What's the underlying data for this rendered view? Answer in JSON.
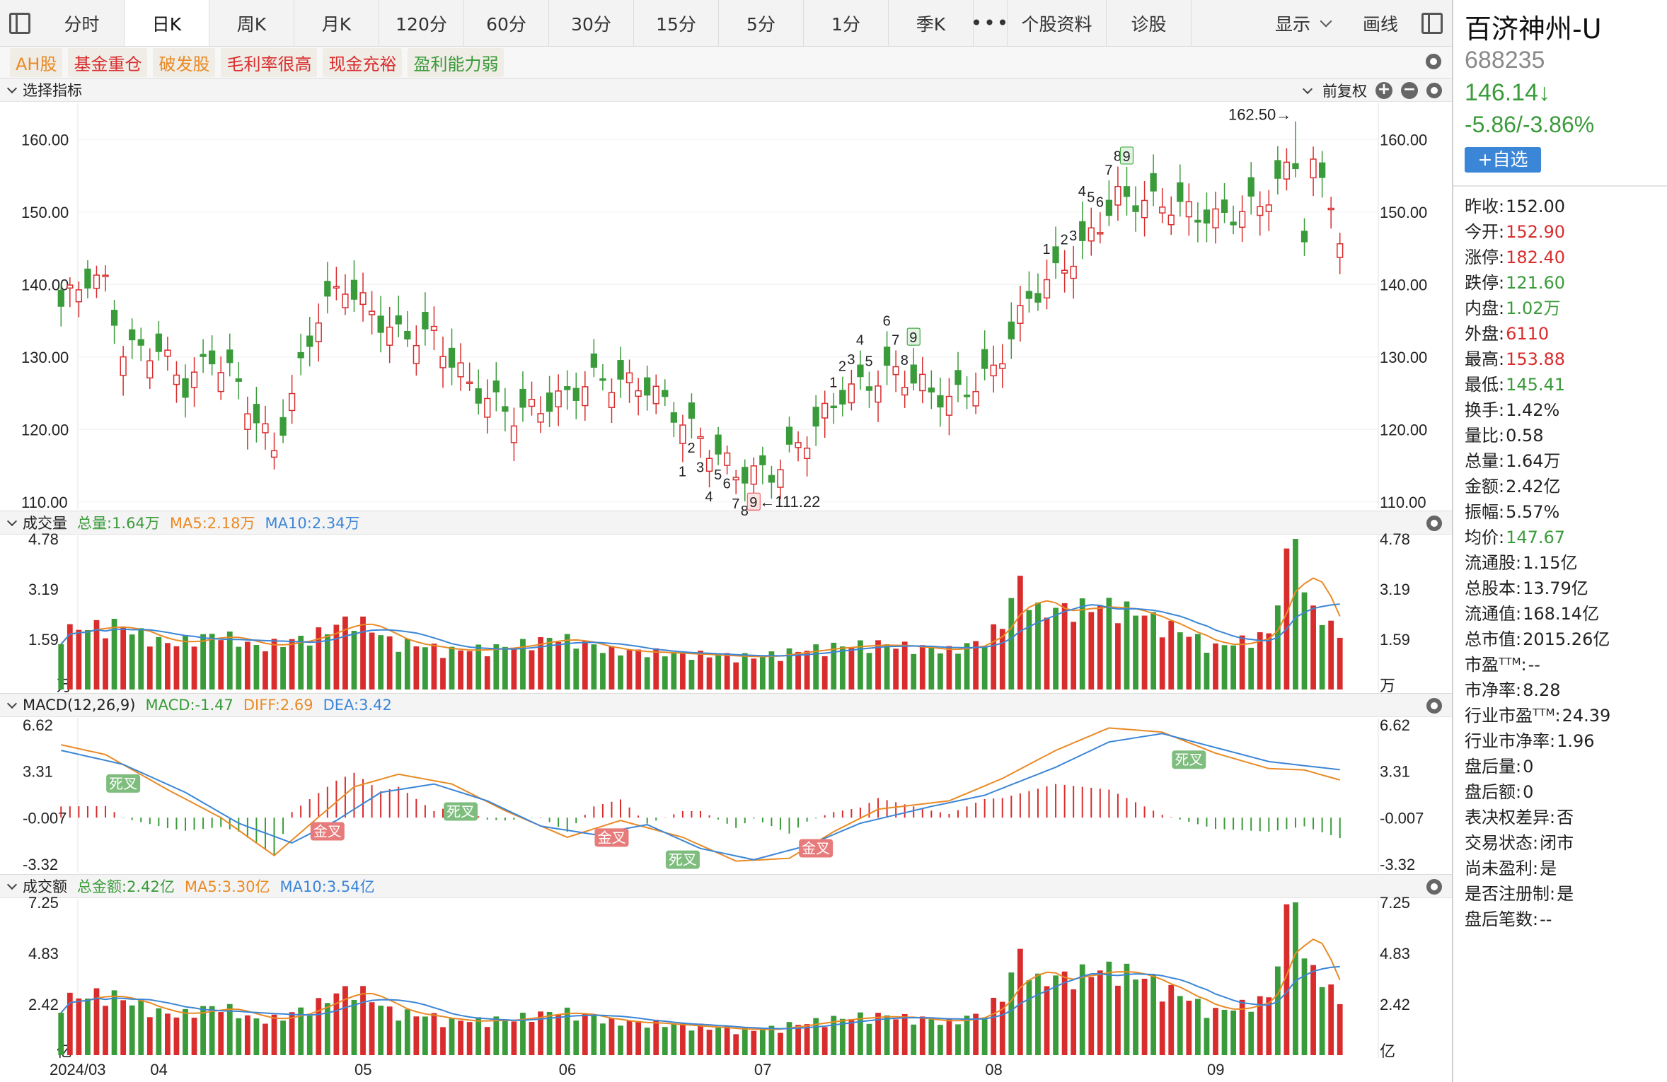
{
  "toolbar": {
    "tabs": [
      "分时",
      "日K",
      "周K",
      "月K",
      "120分",
      "60分",
      "30分",
      "15分",
      "5分",
      "1分",
      "季K"
    ],
    "more": "•••",
    "extra": [
      "个股资料",
      "诊股"
    ],
    "display_label": "显示",
    "draw_label": "画线"
  },
  "tags": [
    {
      "label": "AH股",
      "color": "#e98a25"
    },
    {
      "label": "基金重仓",
      "color": "#d92d2d"
    },
    {
      "label": "破发股",
      "color": "#e98a25"
    },
    {
      "label": "毛利率很高",
      "color": "#d92d2d"
    },
    {
      "label": "现金充裕",
      "color": "#d92d2d"
    },
    {
      "label": "盈利能力弱",
      "color": "#3a9b3a"
    }
  ],
  "price_panel": {
    "title": "选择指标",
    "adjust": "前复权",
    "high_label": "162.50→",
    "low_label": "←111.22",
    "y_ticks": [
      "160.00",
      "150.00",
      "140.00",
      "130.00",
      "120.00",
      "110.00"
    ]
  },
  "volume_panel": {
    "title": "成交量",
    "total": "总量:1.64万",
    "ma5": "MA5:2.18万",
    "ma10": "MA10:2.34万",
    "y_ticks": [
      "4.78",
      "3.19",
      "1.59",
      "万"
    ]
  },
  "macd_panel": {
    "title": "MACD(12,26,9)",
    "macd": "MACD:-1.47",
    "diff": "DIFF:2.69",
    "dea": "DEA:3.42",
    "y_ticks": [
      "6.62",
      "3.31",
      "-0.007",
      "-3.32"
    ],
    "death_cross": "死叉",
    "golden_cross": "金叉"
  },
  "amount_panel": {
    "title": "成交额",
    "total": "总金额:2.42亿",
    "ma5": "MA5:3.30亿",
    "ma10": "MA10:3.54亿",
    "y_ticks": [
      "7.25",
      "4.83",
      "2.42",
      "亿"
    ]
  },
  "x_axis_labels": [
    "2024/03",
    "04",
    "05",
    "06",
    "07",
    "08",
    "09"
  ],
  "stock": {
    "name": "百济神州-U",
    "code": "688235",
    "price": "146.14↓",
    "change": "-5.86/-3.86%",
    "watch_label": "+自选"
  },
  "quotes": [
    {
      "label": "昨收:",
      "value": "152.00",
      "color": "#222222"
    },
    {
      "label": "今开:",
      "value": "152.90",
      "color": "#d92d2d"
    },
    {
      "label": "涨停:",
      "value": "182.40",
      "color": "#d92d2d"
    },
    {
      "label": "跌停:",
      "value": "121.60",
      "color": "#3a9b3a"
    },
    {
      "label": "内盘:",
      "value": "1.02万",
      "color": "#3a9b3a"
    },
    {
      "label": "外盘:",
      "value": "6110",
      "color": "#d92d2d"
    },
    {
      "label": "最高:",
      "value": "153.88",
      "color": "#d92d2d"
    },
    {
      "label": "最低:",
      "value": "145.41",
      "color": "#3a9b3a"
    },
    {
      "label": "换手:",
      "value": "1.42%",
      "color": "#222222"
    },
    {
      "label": "量比:",
      "value": "0.58",
      "color": "#222222"
    },
    {
      "label": "总量:",
      "value": "1.64万",
      "color": "#222222"
    },
    {
      "label": "金额:",
      "value": "2.42亿",
      "color": "#222222"
    },
    {
      "label": "振幅:",
      "value": "5.57%",
      "color": "#222222"
    },
    {
      "label": "均价:",
      "value": "147.67",
      "color": "#3a9b3a"
    },
    {
      "label": "流通股:",
      "value": "1.15亿",
      "color": "#222222"
    },
    {
      "label": "总股本:",
      "value": "13.79亿",
      "color": "#222222"
    },
    {
      "label": "流通值:",
      "value": "168.14亿",
      "color": "#222222"
    },
    {
      "label": "总市值:",
      "value": "2015.26亿",
      "color": "#222222"
    },
    {
      "label": "市盈ᵀᵀᴹ:",
      "value": "--",
      "color": "#222222"
    },
    {
      "label": "市净率:",
      "value": "8.28",
      "color": "#222222"
    },
    {
      "label": "行业市盈ᵀᵀᴹ:",
      "value": "24.39",
      "color": "#222222"
    },
    {
      "label": "行业市净率:",
      "value": "1.96",
      "color": "#222222"
    },
    {
      "label": "盘后量:",
      "value": "0",
      "color": "#222222"
    },
    {
      "label": "盘后额:",
      "value": "0",
      "color": "#222222"
    },
    {
      "label": "表决权差异:",
      "value": "否",
      "color": "#222222"
    },
    {
      "label": "交易状态:",
      "value": "闭市",
      "color": "#222222"
    },
    {
      "label": "尚未盈利:",
      "value": "是",
      "color": "#222222"
    },
    {
      "label": "是否注册制:",
      "value": "是",
      "color": "#222222"
    },
    {
      "label": "盘后笔数:",
      "value": "--",
      "color": "#222222"
    }
  ],
  "colors": {
    "up": "#d92d2d",
    "down": "#3a9b3a",
    "ma5": "#e98a25",
    "ma10": "#3b86d6"
  },
  "chart_data": {
    "type": "candlestick",
    "close_knots": [
      [
        0,
        137
      ],
      [
        3,
        141
      ],
      [
        5,
        140
      ],
      [
        7,
        131
      ],
      [
        11,
        131
      ],
      [
        14,
        126
      ],
      [
        17,
        130
      ],
      [
        19,
        128
      ],
      [
        24,
        117
      ],
      [
        29,
        136
      ],
      [
        32,
        140
      ],
      [
        35,
        136
      ],
      [
        38,
        133
      ],
      [
        42,
        133
      ],
      [
        46,
        126
      ],
      [
        51,
        122
      ],
      [
        56,
        124
      ],
      [
        60,
        127
      ],
      [
        66,
        126
      ],
      [
        71,
        120
      ],
      [
        76,
        114
      ],
      [
        80,
        114
      ],
      [
        84,
        119
      ],
      [
        88,
        125
      ],
      [
        94,
        128
      ],
      [
        100,
        124
      ],
      [
        105,
        128
      ],
      [
        109,
        138
      ],
      [
        115,
        145
      ],
      [
        119,
        152
      ],
      [
        125,
        151
      ],
      [
        130,
        149
      ],
      [
        135,
        151
      ],
      [
        139,
        157
      ],
      [
        140,
        147
      ],
      [
        141,
        156
      ],
      [
        143,
        152
      ],
      [
        144,
        146
      ]
    ],
    "volume_knots": [
      [
        0,
        1.8
      ],
      [
        6,
        2.0
      ],
      [
        12,
        1.4
      ],
      [
        18,
        1.7
      ],
      [
        22,
        1.3
      ],
      [
        28,
        1.6
      ],
      [
        33,
        2.2
      ],
      [
        37,
        1.5
      ],
      [
        44,
        1.2
      ],
      [
        50,
        1.3
      ],
      [
        56,
        1.6
      ],
      [
        62,
        1.2
      ],
      [
        70,
        1.1
      ],
      [
        78,
        1.0
      ],
      [
        86,
        1.3
      ],
      [
        92,
        1.4
      ],
      [
        100,
        1.2
      ],
      [
        104,
        1.5
      ],
      [
        106,
        2.1
      ],
      [
        108,
        3.3
      ],
      [
        110,
        2.4
      ],
      [
        118,
        2.6
      ],
      [
        122,
        2.3
      ],
      [
        130,
        1.3
      ],
      [
        136,
        1.7
      ],
      [
        138,
        3.9
      ],
      [
        139,
        4.78
      ],
      [
        140,
        2.8
      ],
      [
        143,
        1.9
      ],
      [
        144,
        1.64
      ]
    ],
    "macd_diff_knots": [
      [
        0,
        5.2
      ],
      [
        5,
        4.5
      ],
      [
        12,
        2.0
      ],
      [
        18,
        0.0
      ],
      [
        24,
        -2.7
      ],
      [
        28,
        -0.5
      ],
      [
        33,
        2.2
      ],
      [
        38,
        3.1
      ],
      [
        44,
        2.4
      ],
      [
        50,
        0.5
      ],
      [
        57,
        -1.4
      ],
      [
        63,
        -0.2
      ],
      [
        70,
        -1.4
      ],
      [
        76,
        -3.1
      ],
      [
        82,
        -2.9
      ],
      [
        87,
        -1.0
      ],
      [
        92,
        0.6
      ],
      [
        100,
        1.2
      ],
      [
        106,
        2.8
      ],
      [
        112,
        4.8
      ],
      [
        118,
        6.4
      ],
      [
        124,
        6.1
      ],
      [
        130,
        4.6
      ],
      [
        136,
        3.5
      ],
      [
        140,
        3.4
      ],
      [
        144,
        2.69
      ]
    ],
    "macd_dea_knots": [
      [
        0,
        4.8
      ],
      [
        7,
        3.8
      ],
      [
        14,
        1.8
      ],
      [
        20,
        -0.4
      ],
      [
        26,
        -1.8
      ],
      [
        31,
        -0.2
      ],
      [
        36,
        1.8
      ],
      [
        42,
        2.4
      ],
      [
        48,
        1.2
      ],
      [
        54,
        -0.6
      ],
      [
        60,
        -1.2
      ],
      [
        66,
        -0.5
      ],
      [
        72,
        -2.2
      ],
      [
        78,
        -3.0
      ],
      [
        84,
        -2.0
      ],
      [
        90,
        -0.4
      ],
      [
        98,
        0.8
      ],
      [
        104,
        1.6
      ],
      [
        112,
        3.6
      ],
      [
        118,
        5.4
      ],
      [
        124,
        6.0
      ],
      [
        130,
        5.0
      ],
      [
        136,
        4.0
      ],
      [
        144,
        3.42
      ]
    ],
    "td_marks": [
      {
        "label": "1",
        "i": 70
      },
      {
        "label": "2",
        "i": 71
      },
      {
        "label": "3",
        "i": 72
      },
      {
        "label": "4",
        "i": 73
      },
      {
        "label": "5",
        "i": 74
      },
      {
        "label": "6",
        "i": 75
      },
      {
        "label": "7",
        "i": 76
      },
      {
        "label": "8",
        "i": 77
      },
      {
        "label": "9",
        "i": 78,
        "box": "red"
      },
      {
        "label": "1",
        "i": 87
      },
      {
        "label": "2",
        "i": 88
      },
      {
        "label": "3",
        "i": 89
      },
      {
        "label": "4",
        "i": 90
      },
      {
        "label": "5",
        "i": 91
      },
      {
        "label": "6",
        "i": 93
      },
      {
        "label": "7",
        "i": 94
      },
      {
        "label": "8",
        "i": 95
      },
      {
        "label": "9",
        "i": 96,
        "box": "green"
      },
      {
        "label": "1",
        "i": 111
      },
      {
        "label": "2",
        "i": 113
      },
      {
        "label": "3",
        "i": 114
      },
      {
        "label": "4",
        "i": 115
      },
      {
        "label": "5",
        "i": 116
      },
      {
        "label": "6",
        "i": 117
      },
      {
        "label": "7",
        "i": 118
      },
      {
        "label": "8",
        "i": 119
      },
      {
        "label": "9",
        "i": 120,
        "box": "green"
      }
    ],
    "crosses": [
      {
        "kind": "death",
        "i": 7
      },
      {
        "kind": "golden",
        "i": 30
      },
      {
        "kind": "death",
        "i": 45
      },
      {
        "kind": "golden",
        "i": 62
      },
      {
        "kind": "death",
        "i": 70
      },
      {
        "kind": "golden",
        "i": 85
      },
      {
        "kind": "death",
        "i": 127
      }
    ],
    "month_starts": [
      0,
      11,
      34,
      57,
      79,
      105,
      130
    ],
    "price_range": [
      109,
      165
    ],
    "volume_range": [
      0,
      4.78
    ],
    "macd_range": [
      -3.32,
      6.62
    ],
    "amount_range": [
      0,
      7.25
    ]
  }
}
